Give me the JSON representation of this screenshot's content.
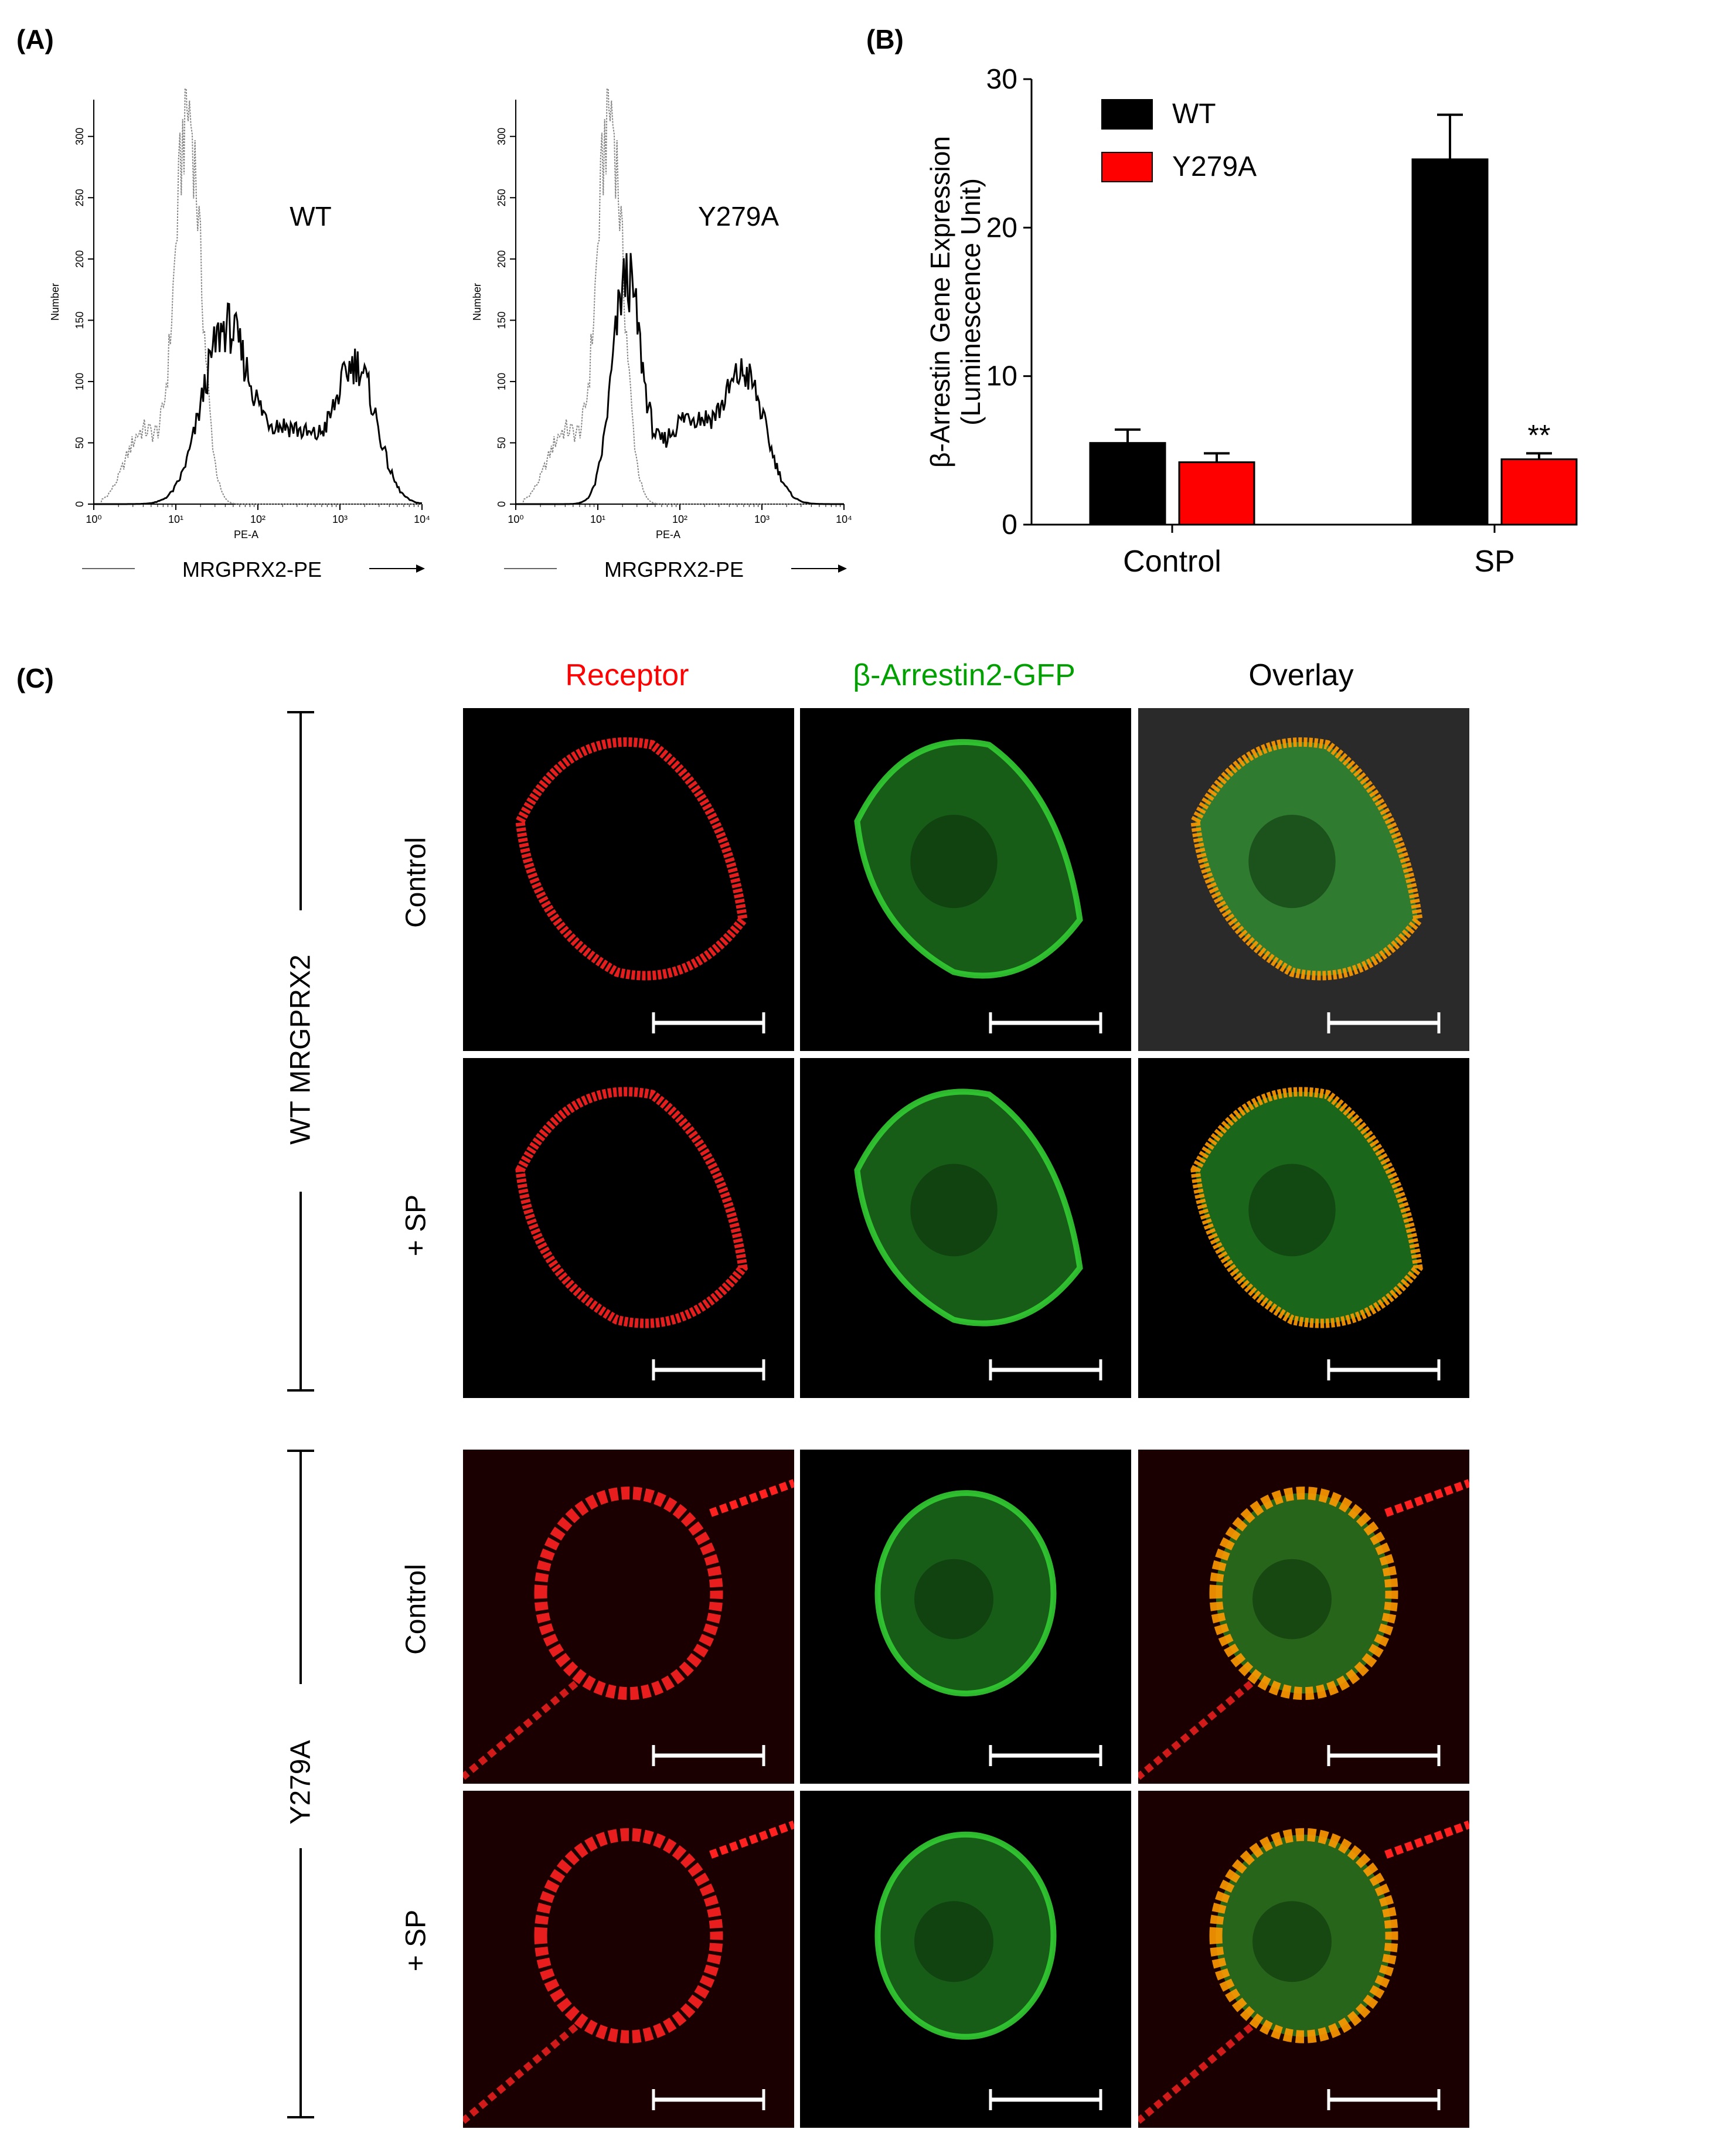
{
  "panel_labels": {
    "a": "(A)",
    "b": "(B)",
    "c": "(C)"
  },
  "flow": {
    "wt_label": "WT",
    "y279a_label": "Y279A",
    "y_axis_title": "Number",
    "x_axis_title": "PE-A",
    "y_ticks": [
      "0",
      "50",
      "100",
      "150",
      "200",
      "250",
      "300"
    ],
    "x_ticks": [
      "10⁰",
      "10¹",
      "10²",
      "10³",
      "10⁴"
    ],
    "caption": "MRGPRX2-PE",
    "colors": {
      "isotype": "#888888",
      "stained": "#000000"
    }
  },
  "chart_data": {
    "type": "bar",
    "categories": [
      "Control",
      "SP"
    ],
    "series": [
      {
        "name": "WT",
        "values": [
          5.5,
          24.6
        ],
        "errors": [
          0.9,
          3.0
        ],
        "color": "#000000"
      },
      {
        "name": "Y279A",
        "values": [
          4.2,
          4.4
        ],
        "errors": [
          0.6,
          0.4
        ],
        "color": "#ff0000"
      }
    ],
    "ylabel_line1": "β-Arrestin Gene Expression",
    "ylabel_line2": "(Luminescence Unit)",
    "ylim": [
      0,
      30
    ],
    "yticks": [
      "0",
      "10",
      "20",
      "30"
    ],
    "annotation": "**",
    "legend_position": "top-left"
  },
  "micro": {
    "col_headers": [
      {
        "label": "Receptor",
        "color": "#ff0000"
      },
      {
        "label": "β-Arrestin2-GFP",
        "color": "#00a000"
      },
      {
        "label": "Overlay",
        "color": "#000000"
      }
    ],
    "group_wt": "WT MRGPRX2",
    "group_y279a": "Y279A",
    "row_control": "Control",
    "row_sp": "+ SP"
  }
}
